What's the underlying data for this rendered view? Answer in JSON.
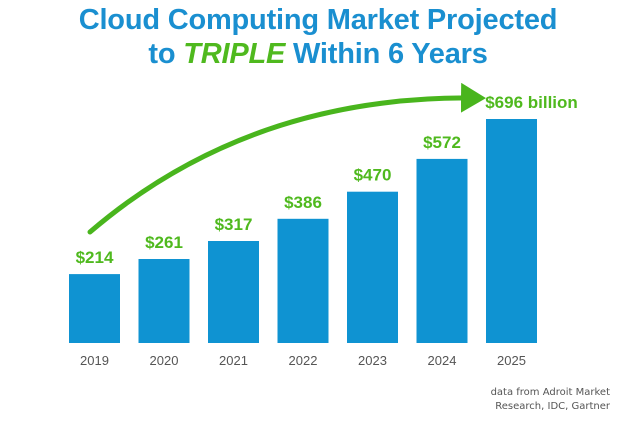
{
  "title_line1": "Cloud Computing Market Projected",
  "title_line2_pre": "to ",
  "title_line2_em": "TRIPLE",
  "title_line2_post": " Within 6 Years",
  "source_line1": "data from Adroit Market",
  "source_line2": "Research, IDC, Gartner",
  "colors": {
    "bar": "#0f93d2",
    "label": "#4fb91e",
    "title": "#1a8fd0",
    "arrow": "#49b51d",
    "axis_text": "#555555"
  },
  "chart_data": {
    "type": "bar",
    "categories": [
      "2019",
      "2020",
      "2021",
      "2022",
      "2023",
      "2024",
      "2025"
    ],
    "values": [
      214,
      261,
      317,
      386,
      470,
      572,
      696
    ],
    "value_labels": [
      "$214",
      "$261",
      "$317",
      "$386",
      "$470",
      "$572",
      "$696 billion"
    ],
    "title": "Cloud Computing Market Projected to TRIPLE Within 6 Years",
    "xlabel": "",
    "ylabel": "",
    "ylim": [
      0,
      696
    ],
    "grid": false,
    "legend": "none",
    "annotation": "curved arrow rising from 2019 toward 2025"
  }
}
